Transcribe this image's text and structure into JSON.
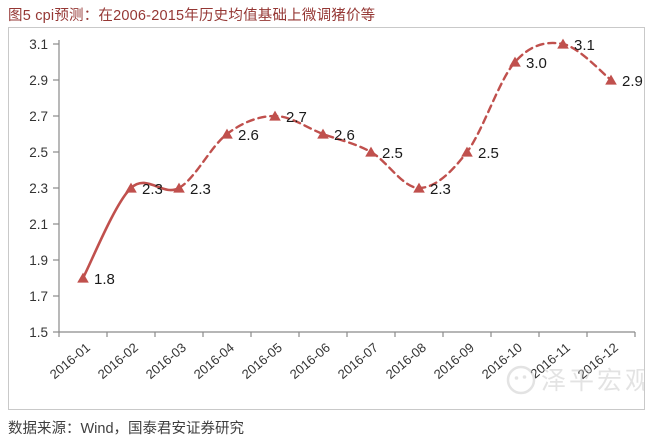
{
  "title": "图5 cpi预测：在2006-2015年历史均值基础上微调猪价等",
  "source": "数据来源：Wind，国泰君安证券研究",
  "watermark": {
    "text": "泽平宏观"
  },
  "colors": {
    "line": "#C0504D",
    "title": "#953734",
    "axis": "#8a8a8a",
    "tick_text": "#333333",
    "data_label": "#1a1a1a",
    "source": "#3f3f3f",
    "watermark": "#c9c9c9",
    "frame_border": "#c9c9c9"
  },
  "chart_data": {
    "type": "line",
    "title": "图5 cpi预测：在2006-2015年历史均值基础上微调猪价等",
    "categories": [
      "2016-01",
      "2016-02",
      "2016-03",
      "2016-04",
      "2016-05",
      "2016-06",
      "2016-07",
      "2016-08",
      "2016-09",
      "2016-10",
      "2016-11",
      "2016-12"
    ],
    "values": [
      1.8,
      2.3,
      2.3,
      2.6,
      2.7,
      2.6,
      2.5,
      2.3,
      2.5,
      3.0,
      3.1,
      2.9
    ],
    "data_labels": [
      "1.8",
      "2.3",
      "2.3",
      "2.6",
      "2.7",
      "2.6",
      "2.5",
      "2.3",
      "2.5",
      "3.0",
      "3.1",
      "2.9"
    ],
    "ylim": [
      1.5,
      3.1
    ],
    "yticks": [
      "1.5",
      "1.7",
      "1.9",
      "2.1",
      "2.3",
      "2.5",
      "2.7",
      "2.9",
      "3.1"
    ],
    "xlabel": "",
    "ylabel": "",
    "grid": false,
    "legend_position": "none",
    "marker": "triangle",
    "smooth": true,
    "line_style": {
      "solid_end_index": 2,
      "dashed_from_index": 2
    },
    "x_label_rotation": -40
  }
}
